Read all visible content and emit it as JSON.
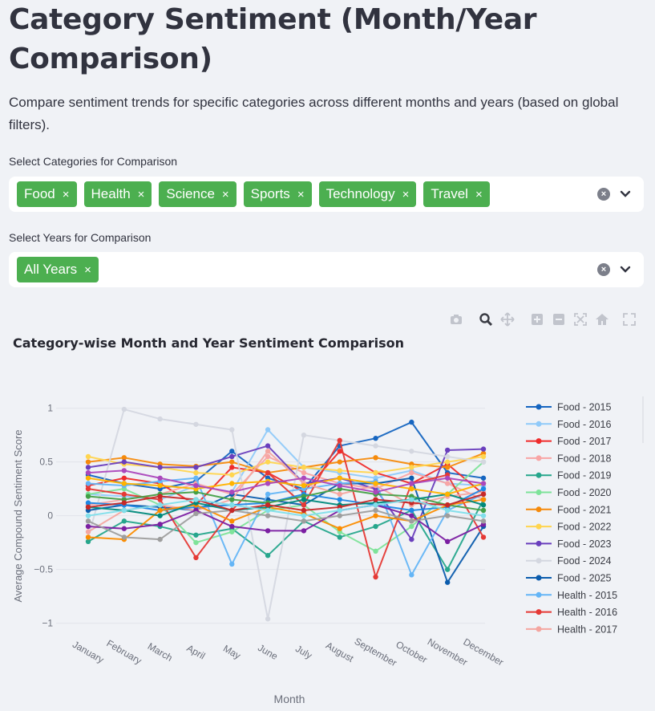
{
  "page": {
    "title": "Category Sentiment (Month/Year Comparison)",
    "subtitle": "Compare sentiment trends for specific categories across different months and years (based on global filters)."
  },
  "categories_select": {
    "label": "Select Categories for Comparison",
    "chips": [
      "Food",
      "Health",
      "Science",
      "Sports",
      "Technology",
      "Travel"
    ],
    "remove_glyph": "×"
  },
  "years_select": {
    "label": "Select Years for Comparison",
    "chips": [
      "All Years"
    ]
  },
  "toolbar": {
    "icons": [
      "camera-icon",
      "zoom-icon",
      "pan-icon",
      "zoom-in-icon",
      "zoom-out-icon",
      "autoscale-icon",
      "reset-axes-icon",
      "fullscreen-icon"
    ]
  },
  "chart_data": {
    "type": "line",
    "title": "Category-wise Month and Year Sentiment Comparison",
    "xlabel": "Month",
    "ylabel": "Average Compound Sentiment Score",
    "categories": [
      "January",
      "February",
      "March",
      "April",
      "May",
      "June",
      "July",
      "August",
      "September",
      "October",
      "November",
      "December"
    ],
    "ylim": [
      -1.1,
      1.05
    ],
    "yticks": [
      -1,
      -0.5,
      0,
      0.5,
      1
    ],
    "ytick_labels": [
      "−1",
      "−0.5",
      "0",
      "0.5",
      "1"
    ],
    "legend_position": "right",
    "grid": true,
    "series": [
      {
        "name": "Food - 2015",
        "color": "#1565c0",
        "values": [
          0.38,
          0.3,
          0.25,
          0.32,
          0.6,
          0.35,
          0.25,
          0.65,
          0.72,
          0.87,
          0.4,
          0.35
        ]
      },
      {
        "name": "Food - 2016",
        "color": "#90caf9",
        "values": [
          0.2,
          0.18,
          0.15,
          0.28,
          0.22,
          0.8,
          0.45,
          0.4,
          0.35,
          0.42,
          0.3,
          0.28
        ]
      },
      {
        "name": "Food - 2017",
        "color": "#ef2b2b",
        "values": [
          0.28,
          0.35,
          0.3,
          0.1,
          0.45,
          0.4,
          0.22,
          0.6,
          0.4,
          0.3,
          0.48,
          0.2
        ]
      },
      {
        "name": "Food - 2018",
        "color": "#f8a5a5",
        "values": [
          0.1,
          0.15,
          0.2,
          0.3,
          0.2,
          0.55,
          0.4,
          0.3,
          0.25,
          0.4,
          0.3,
          0.15
        ]
      },
      {
        "name": "Food - 2019",
        "color": "#26a68c",
        "values": [
          -0.24,
          -0.05,
          -0.1,
          -0.18,
          -0.12,
          -0.37,
          -0.05,
          -0.2,
          -0.1,
          0.05,
          -0.5,
          0.15
        ]
      },
      {
        "name": "Food - 2020",
        "color": "#7ee39a",
        "values": [
          0.2,
          0.25,
          0.1,
          -0.25,
          -0.15,
          0.05,
          0.1,
          -0.15,
          -0.33,
          -0.1,
          0.2,
          0.5
        ]
      },
      {
        "name": "Food - 2021",
        "color": "#f58a0b",
        "values": [
          0.5,
          0.54,
          0.48,
          0.46,
          0.5,
          0.4,
          0.45,
          0.5,
          0.54,
          0.48,
          0.45,
          0.58
        ]
      },
      {
        "name": "Food - 2022",
        "color": "#ffd54f",
        "values": [
          0.55,
          0.48,
          0.45,
          0.4,
          0.38,
          0.5,
          0.45,
          0.42,
          0.4,
          0.45,
          0.5,
          0.55
        ]
      },
      {
        "name": "Food - 2023",
        "color": "#6a3fbd",
        "values": [
          0.45,
          0.5,
          0.45,
          0.45,
          0.55,
          0.65,
          0.3,
          0.35,
          0.25,
          -0.22,
          0.61,
          0.62
        ]
      },
      {
        "name": "Food - 2024",
        "color": "#d4d7e0",
        "values": [
          -0.2,
          0.99,
          0.9,
          0.85,
          0.8,
          -0.96,
          0.75,
          0.7,
          0.65,
          0.6,
          0.55,
          0.5
        ]
      },
      {
        "name": "Food - 2025",
        "color": "#0b5cad",
        "values": [
          0.05,
          0.1,
          0.08,
          0.05,
          0.2,
          0.15,
          0.1,
          0.3,
          0.3,
          0.35,
          -0.62,
          -0.1
        ]
      },
      {
        "name": "Health - 2015",
        "color": "#64b5f6",
        "values": [
          0.3,
          0.28,
          0.32,
          0.35,
          -0.45,
          0.2,
          0.25,
          0.3,
          0.32,
          -0.55,
          0.05,
          0.2
        ]
      },
      {
        "name": "Health - 2016",
        "color": "#e53935",
        "values": [
          0.25,
          0.2,
          0.15,
          -0.39,
          0.05,
          0.4,
          0.1,
          0.7,
          -0.57,
          0.3,
          0.38,
          -0.2
        ]
      },
      {
        "name": "Health - 2017",
        "color": "#f4a6a0",
        "values": [
          -0.15,
          0.05,
          0.1,
          0.05,
          0.15,
          0.6,
          0.3,
          0.2,
          0.28,
          0.1,
          0.18,
          0.22
        ]
      },
      {
        "name": "",
        "color": "#1e88e5",
        "values": [
          0.12,
          0.1,
          0.05,
          0.08,
          0.1,
          0.12,
          0.2,
          0.15,
          0.1,
          0.05,
          0.08,
          0.25
        ]
      },
      {
        "name": "",
        "color": "#43a047",
        "values": [
          0.18,
          0.15,
          0.2,
          0.22,
          0.15,
          0.12,
          0.18,
          0.25,
          0.2,
          0.18,
          0.1,
          0.05
        ]
      },
      {
        "name": "",
        "color": "#fb8c00",
        "values": [
          -0.2,
          -0.22,
          0.05,
          0.1,
          -0.05,
          0.08,
          0.02,
          -0.12,
          0.0,
          -0.05,
          0.1,
          0.15
        ]
      },
      {
        "name": "",
        "color": "#7b1fa2",
        "values": [
          -0.1,
          -0.12,
          -0.08,
          0.05,
          -0.1,
          -0.14,
          -0.14,
          0.05,
          0.1,
          0.0,
          -0.24,
          -0.08
        ]
      },
      {
        "name": "",
        "color": "#00897b",
        "values": [
          0.08,
          0.05,
          0.0,
          0.12,
          0.05,
          0.08,
          0.15,
          0.1,
          0.12,
          0.15,
          0.2,
          0.1
        ]
      },
      {
        "name": "",
        "color": "#ffb300",
        "values": [
          0.35,
          0.3,
          0.28,
          0.25,
          0.3,
          0.32,
          0.28,
          0.35,
          0.3,
          0.25,
          0.2,
          0.3
        ]
      },
      {
        "name": "",
        "color": "#9e9e9e",
        "values": [
          -0.05,
          -0.2,
          -0.22,
          0.02,
          0.05,
          0.0,
          -0.05,
          0.0,
          0.05,
          -0.05,
          0.0,
          -0.05
        ]
      },
      {
        "name": "",
        "color": "#c62828",
        "values": [
          0.08,
          0.12,
          0.18,
          0.15,
          0.05,
          0.1,
          0.05,
          0.08,
          0.15,
          0.12,
          0.1,
          0.2
        ]
      },
      {
        "name": "",
        "color": "#80deea",
        "values": [
          0.0,
          0.05,
          0.1,
          0.15,
          0.1,
          0.05,
          0.0,
          0.05,
          0.1,
          0.15,
          0.05,
          0.0
        ]
      },
      {
        "name": "",
        "color": "#ab47bc",
        "values": [
          0.4,
          0.42,
          0.35,
          0.28,
          0.22,
          0.3,
          0.35,
          0.28,
          0.22,
          0.3,
          0.35,
          0.3
        ]
      }
    ]
  }
}
